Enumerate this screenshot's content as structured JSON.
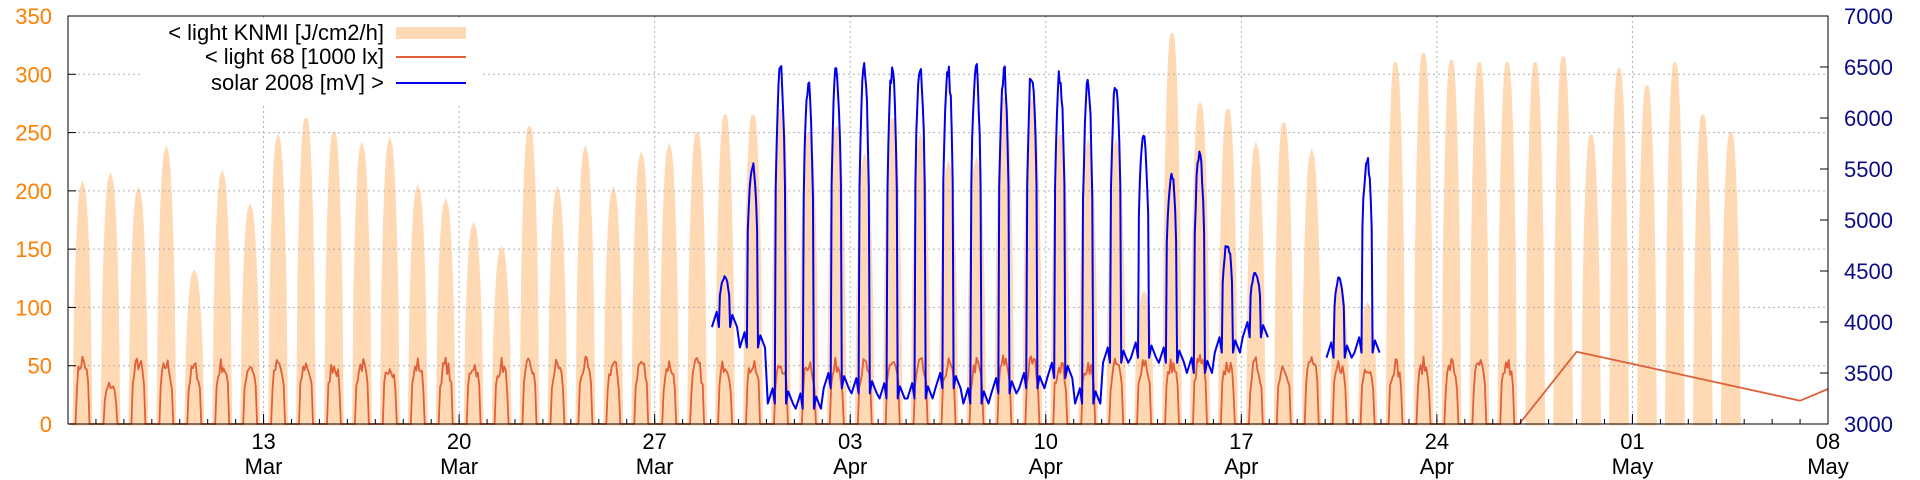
{
  "chart_data": {
    "type": "line",
    "title": "",
    "xlabel": "",
    "x_range": [
      "2008-03-06",
      "2008-05-08"
    ],
    "x_ticks": [
      {
        "date": "2008-03-13",
        "day": "13",
        "month": "Mar"
      },
      {
        "date": "2008-03-20",
        "day": "20",
        "month": "Mar"
      },
      {
        "date": "2008-03-27",
        "day": "27",
        "month": "Mar"
      },
      {
        "date": "2008-04-03",
        "day": "03",
        "month": "Apr"
      },
      {
        "date": "2008-04-10",
        "day": "10",
        "month": "Apr"
      },
      {
        "date": "2008-04-17",
        "day": "17",
        "month": "Apr"
      },
      {
        "date": "2008-04-24",
        "day": "24",
        "month": "Apr"
      },
      {
        "date": "2008-05-01",
        "day": "01",
        "month": "May"
      },
      {
        "date": "2008-05-08",
        "day": "08",
        "month": "May"
      }
    ],
    "y_left": {
      "range": [
        0,
        350
      ],
      "ticks": [
        "0",
        "50",
        "100",
        "150",
        "200",
        "250",
        "300",
        "350"
      ],
      "color": "#ff7f00"
    },
    "y_right": {
      "range": [
        3000,
        7000
      ],
      "ticks": [
        "3000",
        "3500",
        "4000",
        "4500",
        "5000",
        "5500",
        "6000",
        "6500",
        "7000"
      ],
      "color": "#0b0b85"
    },
    "grid": true,
    "legend_position": "top-left",
    "series": [
      {
        "name": "< light KNMI [J/cm2/h]",
        "axis": "left",
        "style": "area",
        "color": "#ffd9b3",
        "daily_peak": [
          205,
          212,
          200,
          235,
          130,
          214,
          186,
          245,
          262,
          250,
          238,
          242,
          202,
          190,
          170,
          150,
          255,
          200,
          235,
          200,
          230,
          237,
          250,
          265,
          265,
          270,
          250,
          255,
          228,
          262,
          245,
          222,
          225,
          280,
          278,
          248,
          240,
          240,
          112,
          335,
          275,
          270,
          238,
          258,
          232,
          120,
          102,
          310,
          318,
          312,
          310,
          310,
          310,
          315,
          248,
          305,
          290,
          310,
          265,
          250
        ],
        "first_day": "2008-03-06"
      },
      {
        "name": "< light 68 [1000 lx]",
        "axis": "left",
        "style": "line",
        "color": "#e0603a",
        "daily_peak": [
          62,
          38,
          60,
          58,
          55,
          58,
          58,
          58,
          58,
          58,
          58,
          58,
          58,
          58,
          58,
          58,
          58,
          58,
          58,
          58,
          60,
          58,
          58,
          60,
          60,
          58,
          60,
          58,
          58,
          62,
          58,
          58,
          58,
          62,
          62,
          58,
          58,
          58,
          62,
          58,
          62,
          58,
          58,
          58,
          62,
          58,
          58,
          58,
          58,
          58,
          58,
          58
        ],
        "first_day": "2008-03-06",
        "tail": [
          {
            "date": "2008-04-29",
            "value": 62
          },
          {
            "date": "2008-05-07",
            "value": 20
          },
          {
            "date": "2008-05-08",
            "value": 30
          }
        ]
      },
      {
        "name": "solar 2008 [mV] >",
        "axis": "right",
        "style": "line",
        "color": "#0000ee",
        "daily_peak": [
          4450,
          5600,
          6600,
          6450,
          6550,
          6550,
          6550,
          6620,
          6600,
          6620,
          6550,
          6550,
          6500,
          6420,
          6380,
          5900,
          5500,
          5700,
          4800,
          4500,
          0,
          0,
          4450,
          5650
        ],
        "daily_trough": [
          3950,
          3750,
          3200,
          3150,
          3350,
          3300,
          3250,
          3250,
          3350,
          3200,
          3300,
          3350,
          3450,
          3200,
          3600,
          3650,
          3600,
          3500,
          3700,
          3850,
          0,
          0,
          3650,
          3700
        ],
        "first_day": "2008-03-29"
      }
    ]
  }
}
